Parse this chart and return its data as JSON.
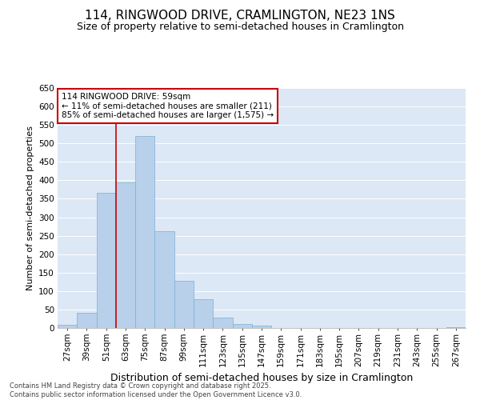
{
  "title": "114, RINGWOOD DRIVE, CRAMLINGTON, NE23 1NS",
  "subtitle": "Size of property relative to semi-detached houses in Cramlington",
  "xlabel": "Distribution of semi-detached houses by size in Cramlington",
  "ylabel": "Number of semi-detached properties",
  "categories": [
    "27sqm",
    "39sqm",
    "51sqm",
    "63sqm",
    "75sqm",
    "87sqm",
    "99sqm",
    "111sqm",
    "123sqm",
    "135sqm",
    "147sqm",
    "159sqm",
    "171sqm",
    "183sqm",
    "195sqm",
    "207sqm",
    "219sqm",
    "231sqm",
    "243sqm",
    "255sqm",
    "267sqm"
  ],
  "values": [
    8,
    42,
    367,
    395,
    520,
    263,
    128,
    77,
    28,
    10,
    7,
    0,
    0,
    0,
    0,
    0,
    0,
    0,
    0,
    0,
    2
  ],
  "bar_color": "#b8d0ea",
  "bar_edgecolor": "#7aafd4",
  "vline_x": 2.5,
  "vline_color": "#cc0000",
  "annotation_text": "114 RINGWOOD DRIVE: 59sqm\n← 11% of semi-detached houses are smaller (211)\n85% of semi-detached houses are larger (1,575) →",
  "annotation_box_edgecolor": "#cc0000",
  "ylim": [
    0,
    650
  ],
  "yticks": [
    0,
    50,
    100,
    150,
    200,
    250,
    300,
    350,
    400,
    450,
    500,
    550,
    600,
    650
  ],
  "background_color": "#dce8f5",
  "footer_line1": "Contains HM Land Registry data © Crown copyright and database right 2025.",
  "footer_line2": "Contains public sector information licensed under the Open Government Licence v3.0.",
  "title_fontsize": 11,
  "subtitle_fontsize": 9,
  "xlabel_fontsize": 9,
  "ylabel_fontsize": 8,
  "tick_fontsize": 7.5,
  "annotation_fontsize": 7.5,
  "footer_fontsize": 6
}
